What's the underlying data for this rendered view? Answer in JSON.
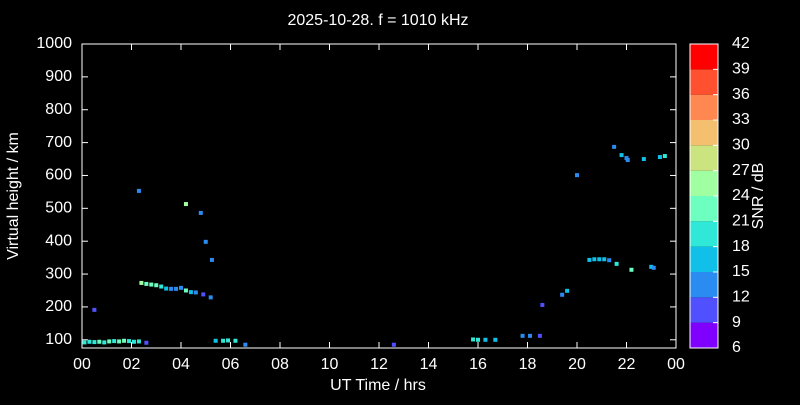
{
  "chart_data": {
    "type": "scatter",
    "title": "2025-10-28. f = 1010 kHz",
    "x_label": "UT Time / hrs",
    "y_label": "Virtual height / km",
    "colorbar_label": "SNR / dB",
    "xlim": [
      0,
      24
    ],
    "ylim": [
      75,
      1000
    ],
    "xticks": [
      {
        "value": 0,
        "label": "00"
      },
      {
        "value": 2,
        "label": "02"
      },
      {
        "value": 4,
        "label": "04"
      },
      {
        "value": 6,
        "label": "06"
      },
      {
        "value": 8,
        "label": "08"
      },
      10,
      12,
      14,
      16,
      18,
      20,
      22,
      {
        "value": 24,
        "label": "00"
      }
    ],
    "yticks": [
      100,
      200,
      300,
      400,
      500,
      600,
      700,
      800,
      900,
      1000
    ],
    "clim": [
      6,
      42
    ],
    "cticks": [
      6,
      9,
      12,
      15,
      18,
      21,
      24,
      27,
      30,
      33,
      36,
      39,
      42
    ],
    "colors": [
      "#8000ff",
      "#5050ff",
      "#2a8cf0",
      "#10c0e8",
      "#30e8d8",
      "#6cffc0",
      "#a0ffa0",
      "#cce480",
      "#f4c070",
      "#ff8850",
      "#ff5030",
      "#ff0000"
    ],
    "x": [
      0.1,
      0.3,
      0.5,
      0.7,
      0.9,
      1.1,
      1.3,
      1.5,
      1.7,
      1.9,
      2.1,
      2.3,
      0.5,
      2.3,
      2.4,
      2.6,
      2.8,
      3.0,
      3.2,
      3.4,
      3.6,
      3.8,
      4.0,
      4.2,
      4.4,
      4.6,
      4.9,
      5.2,
      4.2,
      4.8,
      5.0,
      5.25,
      5.4,
      5.7,
      5.9,
      6.2,
      6.6,
      2.6,
      12.6,
      15.8,
      16.0,
      16.3,
      16.7,
      17.8,
      18.1,
      18.5,
      18.6,
      19.4,
      19.6,
      20.0,
      20.5,
      20.7,
      20.9,
      21.1,
      21.3,
      21.6,
      22.2,
      21.5,
      21.8,
      22.0,
      22.05,
      22.7,
      23.35,
      23.55,
      23.0,
      23.1
    ],
    "values": [
      92,
      94,
      93,
      94,
      92,
      95,
      96,
      95,
      97,
      96,
      94,
      95,
      191,
      553,
      273,
      270,
      268,
      266,
      262,
      256,
      255,
      255,
      258,
      250,
      245,
      244,
      238,
      229,
      513,
      486,
      398,
      343,
      97,
      97,
      98,
      97,
      85,
      91,
      85,
      101,
      100,
      100,
      100,
      112,
      112,
      112,
      206,
      237,
      249,
      601,
      343,
      345,
      345,
      345,
      342,
      331,
      313,
      687,
      662,
      653,
      647,
      650,
      656,
      659,
      322,
      319
    ],
    "snr": [
      19,
      20,
      18,
      21,
      19,
      22,
      20,
      23,
      21,
      20,
      19,
      18,
      10,
      13,
      24,
      23,
      22,
      21,
      19,
      17,
      14,
      13,
      12,
      22,
      15,
      13,
      11,
      12,
      25,
      13,
      14,
      14,
      17,
      18,
      20,
      19,
      12,
      11,
      11,
      20,
      18,
      16,
      17,
      14,
      13,
      11,
      10,
      13,
      16,
      14,
      17,
      16,
      15,
      17,
      14,
      20,
      23,
      14,
      16,
      14,
      13,
      15,
      17,
      19,
      15,
      14
    ]
  }
}
